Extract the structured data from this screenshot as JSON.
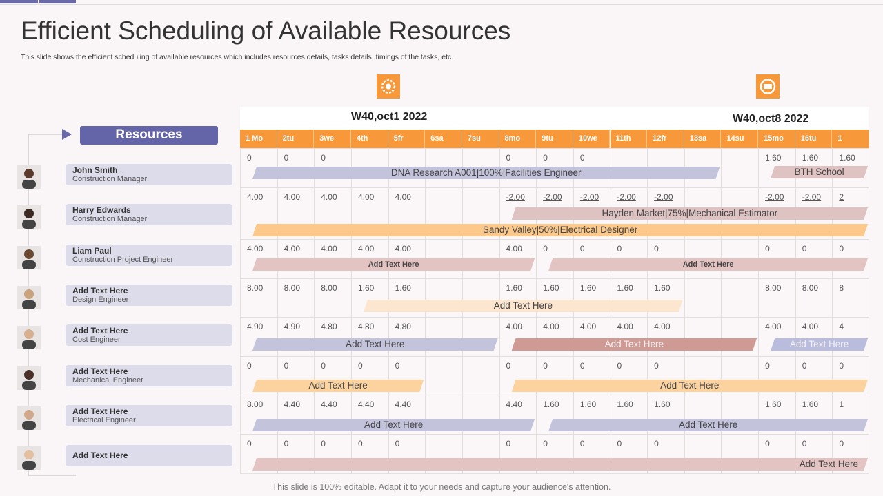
{
  "title": "Efficient Scheduling of Available Resources",
  "subtitle": "This slide shows the efficient scheduling of available resources which includes resources details, tasks details, timings  of the tasks, etc.",
  "footer": "This slide is 100% editable. Adapt it to your needs and capture your audience's attention.",
  "resources_heading": "Resources",
  "resources": [
    {
      "name": "John Smith",
      "role": "Construction Manager"
    },
    {
      "name": "Harry Edwards",
      "role": "Construction Manager"
    },
    {
      "name": "Liam Paul",
      "role": "Construction Project Engineer"
    },
    {
      "name": "Add Text Here",
      "role": "Design Engineer"
    },
    {
      "name": "Add Text Here",
      "role": "Cost Engineer"
    },
    {
      "name": "Add Text Here",
      "role": "Mechanical Engineer"
    },
    {
      "name": "Add Text Here",
      "role": "Electrical Engineer"
    },
    {
      "name": "Add Text Here"
    }
  ],
  "weeks": [
    "W40,oct1  2022",
    "W40,oct8  2022"
  ],
  "days": [
    "1 Mo",
    "2tu",
    "3we",
    "4th",
    "5fr",
    "6sa",
    "7su",
    "8mo",
    "9tu",
    "10we",
    "11th",
    "12fr",
    "13sa",
    "14su",
    "15mo",
    "16tu",
    "1"
  ],
  "rows": [
    {
      "cells": [
        "0",
        "0",
        "0",
        null,
        null,
        null,
        null,
        "0",
        "0",
        "0",
        null,
        null,
        null,
        null,
        "1.60",
        "1.60",
        "1.60"
      ],
      "bars": [
        {
          "label": "DNA  Research  A001|100%|Facilities  Engineer",
          "color": "#c3c3dc"
        },
        {
          "label": "BTH  School",
          "color": "#dfc2c2"
        }
      ]
    },
    {
      "cells": [
        "4.00",
        "4.00",
        "4.00",
        "4.00",
        "4.00",
        null,
        null,
        "-2.00",
        "-2.00",
        "-2.00",
        "-2.00",
        "-2.00",
        null,
        null,
        "-2.00",
        "-2.00",
        "2"
      ],
      "bars": [
        {
          "label": "Hayden Market|75%|Mechanical Estimator",
          "color": "#dfc2c2"
        },
        {
          "label": "Sandy Valley|50%|Electrical  Designer",
          "color": "#fcc98a"
        }
      ]
    },
    {
      "cells": [
        "4.00",
        "4.00",
        "4.00",
        "4.00",
        "4.00",
        null,
        null,
        "4.00",
        "0",
        "0",
        "0",
        "0",
        null,
        null,
        "0",
        "0",
        "0"
      ],
      "bars": [
        {
          "label": "Add Text Here",
          "color": "#e4c4c2"
        },
        {
          "label": "Add Text Here",
          "color": "#e4c4c2"
        }
      ]
    },
    {
      "cells": [
        "8.00",
        "8.00",
        "8.00",
        "1.60",
        "1.60",
        null,
        null,
        "1.60",
        "1.60",
        "1.60",
        "1.60",
        "1.60",
        null,
        null,
        "8.00",
        "8.00",
        "8"
      ],
      "bars": [
        {
          "label": "Add  Text Here",
          "color": "#fde6d0"
        }
      ]
    },
    {
      "cells": [
        "4.90",
        "4.90",
        "4.80",
        "4.80",
        "4.80",
        null,
        null,
        "4.00",
        "4.00",
        "4.00",
        "4.00",
        "4.00",
        null,
        null,
        "4.00",
        "4.00",
        "4"
      ],
      "bars": [
        {
          "label": "Add  Text Here",
          "color": "#c3c3dc"
        },
        {
          "label": "Add  Text Here",
          "color": "#cf9a94"
        },
        {
          "label": "Add  Text Here",
          "color": "#b9bcdc"
        }
      ]
    },
    {
      "cells": [
        "0",
        "0",
        "0",
        "0",
        "0",
        null,
        null,
        "0",
        "0",
        "0",
        "0",
        "0",
        null,
        null,
        "0",
        "0",
        "0"
      ],
      "bars": [
        {
          "label": "Add  Text Here",
          "color": "#fcd29e"
        },
        {
          "label": "Add  Text Here",
          "color": "#fcd29e"
        }
      ]
    },
    {
      "cells": [
        "8.00",
        "4.40",
        "4.40",
        "4.40",
        "4.40",
        null,
        null,
        "4.40",
        "1.60",
        "1.60",
        "1.60",
        "1.60",
        null,
        null,
        "1.60",
        "1.60",
        "1"
      ],
      "bars": [
        {
          "label": "Add  Text Here",
          "color": "#c3c3dc"
        },
        {
          "label": "Add  Text Here",
          "color": "#c3c3dc"
        }
      ]
    },
    {
      "cells": [
        "0",
        "0",
        "0",
        "0",
        "0",
        null,
        null,
        "0",
        "0",
        "0",
        "0",
        "0",
        null,
        null,
        "0",
        "0",
        "0"
      ],
      "bars": [
        {
          "label": "Add  Text Here",
          "color": "#e4c4c2"
        }
      ]
    }
  ]
}
